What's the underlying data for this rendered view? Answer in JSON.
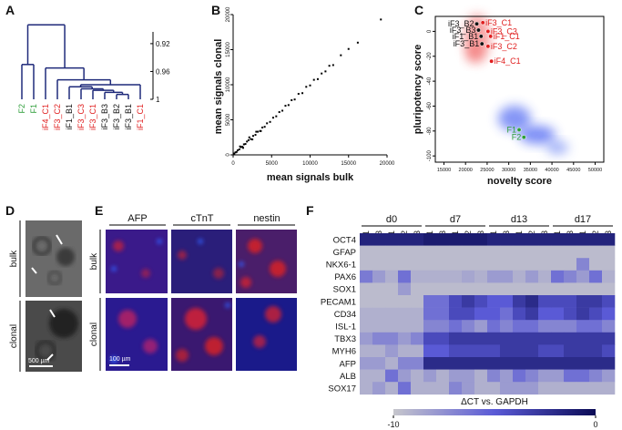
{
  "panel_labels": [
    "A",
    "B",
    "C",
    "D",
    "E",
    "F"
  ],
  "dendrogram": {
    "ylim": [
      0.89,
      1
    ],
    "yticks": [
      0.92,
      0.96,
      1
    ],
    "line_color": "#1f2a7a",
    "tree": {
      "height": 0.893,
      "children": [
        {
          "height": 0.95,
          "children": [
            {
              "label": "F2",
              "color": "#2e9e3a"
            },
            {
              "label": "F1",
              "color": "#2e9e3a"
            }
          ]
        },
        {
          "height": 0.955,
          "children": [
            {
              "label": "iF4_C1",
              "color": "#e02020"
            },
            {
              "height": 0.972,
              "children": [
                {
                  "label": "iF3_C2",
                  "color": "#e02020"
                },
                {
                  "height": 0.979,
                  "children": [
                    {
                      "height": 0.982,
                      "children": [
                        {
                          "label": "iF1_B1",
                          "color": "#111111"
                        },
                        {
                          "height": 0.985,
                          "children": [
                            {
                              "label": "iF3_C3",
                              "color": "#e02020"
                            },
                            {
                              "height": 0.987,
                              "children": [
                                {
                                  "label": "iF3_C1",
                                  "color": "#e02020"
                                },
                                {
                                  "height": 0.99,
                                  "children": [
                                    {
                                      "label": "iF3_B3",
                                      "color": "#111111"
                                    },
                                    {
                                      "height": 0.993,
                                      "children": [
                                        {
                                          "label": "iF3_B2",
                                          "color": "#111111"
                                        },
                                        {
                                          "label": "iF3_B1",
                                          "color": "#111111"
                                        }
                                      ]
                                    }
                                  ]
                                }
                              ]
                            }
                          ]
                        }
                      ]
                    },
                    {
                      "label": "iF1_C1",
                      "color": "#e02020"
                    }
                  ]
                }
              ]
            }
          ]
        }
      ]
    }
  },
  "scatter": {
    "type": "scatter",
    "color": "#000000",
    "xlabel": "mean signals bulk",
    "ylabel": "mean signals clonal",
    "xlim": [
      0,
      20000
    ],
    "ylim": [
      0,
      20000
    ],
    "xticks": [
      0,
      5000,
      10000,
      15000,
      20000
    ],
    "yticks": [
      0,
      5000,
      10000,
      15000,
      20000
    ],
    "x": [
      150,
      300,
      450,
      600,
      800,
      1000,
      1200,
      1400,
      1600,
      1800,
      2000,
      2300,
      2600,
      2900,
      3200,
      3500,
      3800,
      4100,
      4400,
      4800,
      5200,
      5600,
      6000,
      6400,
      6800,
      7200,
      7600,
      8000,
      8500,
      9000,
      9500,
      10000,
      10500,
      11000,
      11500,
      12000,
      12500,
      13000,
      14000,
      15000,
      16200,
      19200,
      900,
      1300,
      2100,
      2500,
      3000,
      3600
    ],
    "y": [
      200,
      350,
      420,
      650,
      780,
      1100,
      1150,
      1500,
      1550,
      1900,
      2100,
      2250,
      2700,
      2850,
      3300,
      3400,
      3900,
      4000,
      4500,
      4700,
      5300,
      5500,
      6100,
      6300,
      7000,
      7100,
      7800,
      7900,
      8700,
      8800,
      9700,
      9900,
      10700,
      10800,
      11600,
      11900,
      12700,
      12800,
      14200,
      15100,
      16000,
      19300,
      1200,
      1000,
      2500,
      2200,
      3300,
      3400
    ]
  },
  "score_plot": {
    "type": "scatter",
    "xlabel": "novelty score",
    "ylabel": "pluripotency score",
    "xlim": [
      13000,
      52000
    ],
    "ylim": [
      -105,
      12
    ],
    "xticks": [
      15000,
      20000,
      25000,
      30000,
      35000,
      40000,
      45000,
      50000
    ],
    "yticks": [
      0,
      -20,
      -40,
      -60,
      -80,
      -100
    ],
    "points": [
      {
        "label": "iF3_B2",
        "x": 22600,
        "y": 6,
        "color": "#111111"
      },
      {
        "label": "iF3_C1",
        "x": 24000,
        "y": 7,
        "color": "#e02020"
      },
      {
        "label": "iF3_B3",
        "x": 23000,
        "y": 1,
        "color": "#111111"
      },
      {
        "label": "iF3_C3",
        "x": 25200,
        "y": 0,
        "color": "#e02020"
      },
      {
        "label": "iF1_B1",
        "x": 23600,
        "y": -4,
        "color": "#111111"
      },
      {
        "label": "iF1_C1",
        "x": 25800,
        "y": -4,
        "color": "#e02020"
      },
      {
        "label": "iF3_B1",
        "x": 23800,
        "y": -10,
        "color": "#111111"
      },
      {
        "label": "iF3_C2",
        "x": 25200,
        "y": -12,
        "color": "#e02020"
      },
      {
        "label": "iF4_C1",
        "x": 26000,
        "y": -24,
        "color": "#e02020"
      },
      {
        "label": "F1",
        "x": 32400,
        "y": -79,
        "color": "#2e9e3a"
      },
      {
        "label": "F2",
        "x": 33500,
        "y": -85,
        "color": "#2e9e3a"
      }
    ]
  },
  "microscopy": {
    "rows": [
      "bulk",
      "clonal"
    ],
    "scale_bar": "500 µm"
  },
  "fluorescence": {
    "stains": [
      "AFP",
      "cTnT",
      "nestin"
    ],
    "rows": [
      "bulk",
      "clonal"
    ],
    "scale_bar": "100 µm"
  },
  "heatmap": {
    "days": [
      "d0",
      "d7",
      "d13",
      "d17"
    ],
    "columns": [
      "C1",
      "C3",
      "B1",
      "B2",
      "B3"
    ],
    "colors": [
      "#c6c6cc",
      "#5a5ad6",
      "#0b0b55"
    ],
    "colorbar": {
      "label": "ΔCT vs. GAPDH",
      "ticks": [
        -10,
        0
      ]
    },
    "rows": [
      {
        "gene": "OCT4",
        "values": [
          -1.5,
          -1.5,
          -1.5,
          -1.5,
          -1.5,
          -1,
          -1,
          -1,
          -1,
          -1,
          -1.5,
          -1.5,
          -1.5,
          -1.5,
          -1.5,
          -1.5,
          -1.5,
          -1.5,
          -1.5,
          -1.5
        ]
      },
      {
        "gene": "GFAP",
        "values": [
          -9.5,
          -9.5,
          -9.5,
          -9.5,
          -9.5,
          -9.5,
          -9.5,
          -9.5,
          -9.5,
          -9.5,
          -9.5,
          -9.5,
          -9.5,
          -9.5,
          -9.5,
          -9.5,
          -9.5,
          -9.5,
          -9.5,
          -9.5
        ]
      },
      {
        "gene": "NKX6-1",
        "values": [
          -9.5,
          -9.5,
          -9.5,
          -9.5,
          -9.5,
          -9.5,
          -9.5,
          -9.5,
          -9.5,
          -9.5,
          -9.5,
          -9.5,
          -9.5,
          -9.5,
          -9.5,
          -9.5,
          -9.5,
          -7,
          -9.5,
          -9.5
        ]
      },
      {
        "gene": "PAX6",
        "values": [
          -6.5,
          -8,
          -9,
          -6,
          -9,
          -9,
          -9,
          -9,
          -8.5,
          -9,
          -8,
          -8,
          -9,
          -8,
          -9,
          -6,
          -7,
          -8,
          -6,
          -9
        ]
      },
      {
        "gene": "SOX1",
        "values": [
          -9.5,
          -9.5,
          -9.5,
          -8,
          -9.5,
          -9.5,
          -9.5,
          -9.5,
          -9.5,
          -9.5,
          -9.5,
          -9.5,
          -9.5,
          -9.5,
          -9.5,
          -9.5,
          -9.5,
          -9.5,
          -9.5,
          -9.5
        ]
      },
      {
        "gene": "PECAM1",
        "values": [
          -9.5,
          -9.5,
          -9.5,
          -9.5,
          -9.5,
          -6,
          -6,
          -4,
          -3,
          -4,
          -5,
          -5,
          -3,
          -2,
          -4,
          -4,
          -4,
          -3,
          -3,
          -4
        ]
      },
      {
        "gene": "CD34",
        "values": [
          -9,
          -9,
          -9,
          -9,
          -9,
          -6,
          -6,
          -4,
          -4,
          -5,
          -5,
          -6,
          -4,
          -3,
          -5,
          -5,
          -4,
          -3,
          -4,
          -5
        ]
      },
      {
        "gene": "ISL-1",
        "values": [
          -9,
          -9,
          -9,
          -9,
          -9,
          -7,
          -7,
          -6,
          -7,
          -8,
          -6,
          -7,
          -6,
          -6,
          -7,
          -7,
          -7,
          -6,
          -6,
          -7
        ]
      },
      {
        "gene": "TBX3",
        "values": [
          -8,
          -7,
          -7,
          -8,
          -7,
          -4,
          -4,
          -3,
          -3,
          -3,
          -3,
          -3,
          -3,
          -3,
          -3,
          -3,
          -3,
          -3,
          -3,
          -3
        ]
      },
      {
        "gene": "MYH6",
        "values": [
          -9,
          -9,
          -8,
          -9,
          -9,
          -5,
          -5,
          -4,
          -4,
          -4,
          -4,
          -3,
          -3,
          -3,
          -4,
          -4,
          -3,
          -3,
          -3,
          -4
        ]
      },
      {
        "gene": "AFP",
        "values": [
          -8,
          -8,
          -9,
          -7,
          -7,
          -2,
          -2,
          -2,
          -2,
          -2,
          -2,
          -2,
          -2,
          -2,
          -2,
          -2,
          -2,
          -2,
          -2,
          -2
        ]
      },
      {
        "gene": "ALB",
        "values": [
          -9,
          -9,
          -6,
          -8,
          -9,
          -8,
          -9,
          -8,
          -8,
          -9,
          -7,
          -8,
          -6,
          -7,
          -8,
          -8,
          -6,
          -6,
          -7,
          -8
        ]
      },
      {
        "gene": "SOX17",
        "values": [
          -9,
          -8,
          -9,
          -6,
          -9,
          -9,
          -9,
          -7,
          -8,
          -9,
          -9,
          -8,
          -8,
          -8,
          -9,
          -9,
          -9,
          -9,
          -9,
          -9
        ]
      }
    ]
  }
}
